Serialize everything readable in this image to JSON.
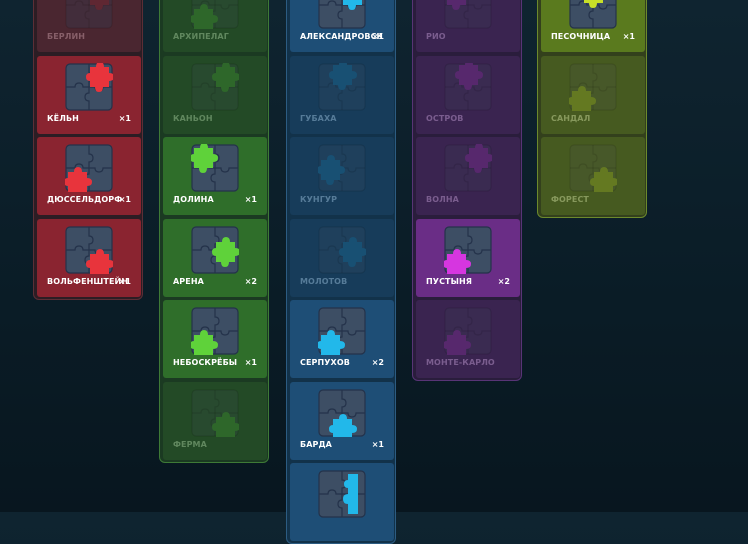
{
  "columns": [
    {
      "id": "red",
      "colors": {
        "col_bg": "#2c1d24",
        "col_border": "#5c2e36",
        "active_bg": "#8a2430",
        "dim_bg": "#4a2630",
        "piece": "#e8343c",
        "piece_dim": "#7a2a36",
        "tile": "#3d4e64",
        "tile_dim": "#39374a",
        "text": "#ffffff",
        "text_dim": "#b98f98"
      },
      "cards": [
        {
          "label": "БЕРЛИН",
          "count": "",
          "state": "dim",
          "piece": "tr"
        },
        {
          "label": "КЁЛЬН",
          "count": "×1",
          "state": "active",
          "piece": "tr"
        },
        {
          "label": "ДЮССЕЛЬДОРФ",
          "count": "×1",
          "state": "active",
          "piece": "bl"
        },
        {
          "label": "ВОЛЬФЕНШТЕЙН",
          "count": "×1",
          "state": "active",
          "piece": "br"
        }
      ]
    },
    {
      "id": "green",
      "colors": {
        "col_bg": "#1b3a22",
        "col_border": "#3e7a36",
        "active_bg": "#2f6e2a",
        "dim_bg": "#234a26",
        "piece": "#5fd23a",
        "piece_dim": "#3c8a30",
        "tile": "#3d4e64",
        "tile_dim": "#2f4a3c",
        "text": "#ffffff",
        "text_dim": "#93b98c"
      },
      "cards": [
        {
          "label": "АРХИПЕЛАГ",
          "count": "",
          "state": "dim",
          "piece": "bl"
        },
        {
          "label": "КАНЬОН",
          "count": "",
          "state": "dim",
          "piece": "tr"
        },
        {
          "label": "ДОЛИНА",
          "count": "×1",
          "state": "active",
          "piece": "tl"
        },
        {
          "label": "АРЕНА",
          "count": "×2",
          "state": "active",
          "piece": "mr"
        },
        {
          "label": "НЕБОСКРЁБЫ",
          "count": "×1",
          "state": "active",
          "piece": "bl"
        },
        {
          "label": "ФЕРМА",
          "count": "",
          "state": "dim",
          "piece": "br"
        }
      ]
    },
    {
      "id": "blue",
      "colors": {
        "col_bg": "#12324a",
        "col_border": "#2c5c82",
        "active_bg": "#1e4e76",
        "dim_bg": "#173c5a",
        "piece": "#22b8ea",
        "piece_dim": "#1a6a92",
        "tile": "#3d4e64",
        "tile_dim": "#2a4660",
        "text": "#ffffff",
        "text_dim": "#8ab0cc"
      },
      "cards": [
        {
          "label": "АЛЕКСАНДРОВСК",
          "count": "×1",
          "state": "active",
          "piece": "tr"
        },
        {
          "label": "ГУБАХА",
          "count": "",
          "state": "dim",
          "piece": "tc"
        },
        {
          "label": "КУНГУР",
          "count": "",
          "state": "dim",
          "piece": "ml"
        },
        {
          "label": "МОЛОТОВ",
          "count": "",
          "state": "dim",
          "piece": "mr"
        },
        {
          "label": "СЕРПУХОВ",
          "count": "×2",
          "state": "active",
          "piece": "bl"
        },
        {
          "label": "БАРДА",
          "count": "×1",
          "state": "active",
          "piece": "bc"
        },
        {
          "label": "",
          "count": "",
          "state": "active",
          "piece": "r"
        }
      ]
    },
    {
      "id": "purple",
      "colors": {
        "col_bg": "#2a1d3c",
        "col_border": "#583476",
        "active_bg": "#6a2d86",
        "dim_bg": "#3a2450",
        "piece": "#d636e0",
        "piece_dim": "#7a2e92",
        "tile": "#3d4e64",
        "tile_dim": "#3a3454",
        "text": "#ffffff",
        "text_dim": "#b08cc2"
      },
      "cards": [
        {
          "label": "РИО",
          "count": "",
          "state": "dim",
          "piece": "tl"
        },
        {
          "label": "ОСТРОВ",
          "count": "",
          "state": "dim",
          "piece": "tc"
        },
        {
          "label": "ВОЛНА",
          "count": "",
          "state": "dim",
          "piece": "tr"
        },
        {
          "label": "ПУСТЫНЯ",
          "count": "×2",
          "state": "active",
          "piece": "bl"
        },
        {
          "label": "МОНТЕ-КАРЛО",
          "count": "",
          "state": "dim",
          "piece": "bl"
        }
      ]
    },
    {
      "id": "lime",
      "colors": {
        "col_bg": "#33401c",
        "col_border": "#6c8a2c",
        "active_bg": "#5a7a1e",
        "dim_bg": "#465a20",
        "piece": "#c8e028",
        "piece_dim": "#8aa024",
        "tile": "#3d4e64",
        "tile_dim": "#4a5636",
        "text": "#ffffff",
        "text_dim": "#bccc8e"
      },
      "cards": [
        {
          "label": "ПЕСОЧНИЦА",
          "count": "×1",
          "state": "active",
          "piece": "tc"
        },
        {
          "label": "САНДАЛ",
          "count": "",
          "state": "dim",
          "piece": "bl"
        },
        {
          "label": "ФОРЕСТ",
          "count": "",
          "state": "dim",
          "piece": "br"
        }
      ]
    }
  ]
}
